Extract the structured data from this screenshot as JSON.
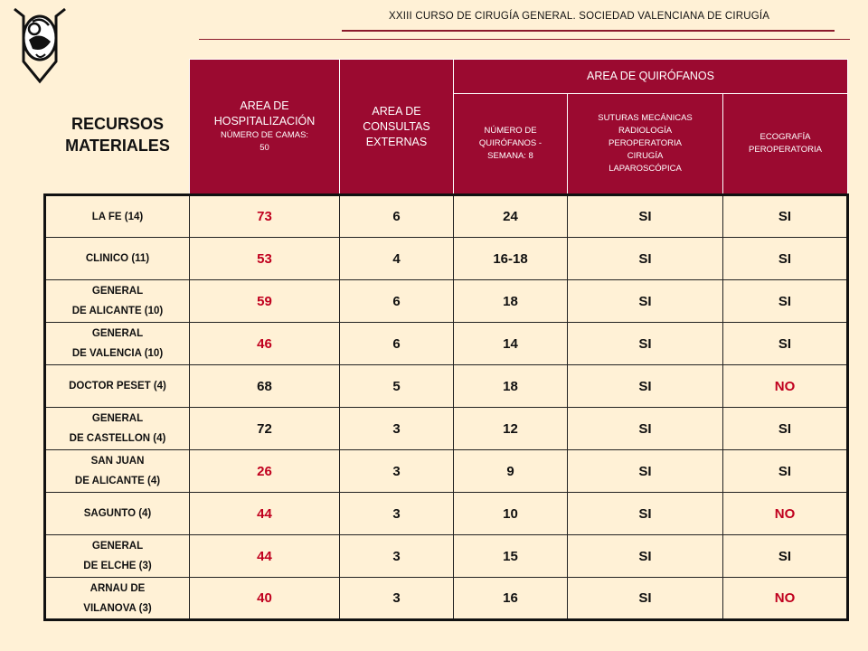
{
  "header": {
    "conference_title": "XXIII CURSO DE CIRUGÍA GENERAL.  SOCIEDAD VALENCIANA DE CIRUGÍA"
  },
  "recursos_label": [
    "RECURSOS",
    "MATERIALES"
  ],
  "columns": {
    "hospitalizacion": {
      "line1": "AREA DE",
      "line2": "HOSPITALIZACIÓN",
      "line3": "NÚMERO DE CAMAS:",
      "line4": "50"
    },
    "consultas": {
      "line1": "AREA DE",
      "line2": "CONSULTAS",
      "line3": "EXTERNAS"
    },
    "quirofanos": {
      "title": "AREA DE QUIRÓFANOS"
    },
    "num_quirofanos": {
      "line1": "NÚMERO DE",
      "line2": "QUIRÓFANOS -",
      "line3": "SEMANA: 8"
    },
    "suturas": {
      "line1": "SUTURAS MECÁNICAS",
      "line2": "RADIOLOGÍA",
      "line3": "PEROPERATORIA",
      "line4": "CIRUGÍA",
      "line5": "LAPAROSCÓPICA"
    },
    "ecografia": {
      "line1": "ECOGRAFÍA",
      "line2": "PEROPERATORIA"
    }
  },
  "rows": [
    {
      "name1": "LA FE (14)",
      "name2": "",
      "camas": "73",
      "camas_red": true,
      "consultas": "6",
      "quirofanos": "24",
      "suturas": "SI",
      "ecografia": "SI",
      "eco_red": false
    },
    {
      "name1": "CLINICO (11)",
      "name2": "",
      "camas": "53",
      "camas_red": true,
      "consultas": "4",
      "quirofanos": "16-18",
      "suturas": "SI",
      "ecografia": "SI",
      "eco_red": false
    },
    {
      "name1": "GENERAL",
      "name2": "DE ALICANTE (10)",
      "camas": "59",
      "camas_red": true,
      "consultas": "6",
      "quirofanos": "18",
      "suturas": "SI",
      "ecografia": "SI",
      "eco_red": false
    },
    {
      "name1": "GENERAL",
      "name2": "DE VALENCIA (10)",
      "camas": "46",
      "camas_red": true,
      "consultas": "6",
      "quirofanos": "14",
      "suturas": "SI",
      "ecografia": "SI",
      "eco_red": false
    },
    {
      "name1": "DOCTOR PESET (4)",
      "name2": "",
      "camas": "68",
      "camas_red": false,
      "consultas": "5",
      "quirofanos": "18",
      "suturas": "SI",
      "ecografia": "NO",
      "eco_red": true
    },
    {
      "name1": "GENERAL",
      "name2": "DE CASTELLON (4)",
      "camas": "72",
      "camas_red": false,
      "consultas": "3",
      "quirofanos": "12",
      "suturas": "SI",
      "ecografia": "SI",
      "eco_red": false
    },
    {
      "name1": "SAN JUAN",
      "name2": "DE ALICANTE (4)",
      "camas": "26",
      "camas_red": true,
      "consultas": "3",
      "quirofanos": "9",
      "suturas": "SI",
      "ecografia": "SI",
      "eco_red": false
    },
    {
      "name1": "SAGUNTO (4)",
      "name2": "",
      "camas": "44",
      "camas_red": true,
      "consultas": "3",
      "quirofanos": "10",
      "suturas": "SI",
      "ecografia": "NO",
      "eco_red": true
    },
    {
      "name1": "GENERAL",
      "name2": "DE ELCHE (3)",
      "camas": "44",
      "camas_red": true,
      "consultas": "3",
      "quirofanos": "15",
      "suturas": "SI",
      "ecografia": "SI",
      "eco_red": false
    },
    {
      "name1": "ARNAU DE",
      "name2": "VILANOVA (3)",
      "camas": "40",
      "camas_red": true,
      "consultas": "3",
      "quirofanos": "16",
      "suturas": "SI",
      "ecografia": "NO",
      "eco_red": true
    }
  ],
  "colors": {
    "header_bg": "#9B0A30",
    "page_bg": "#FFF1D6",
    "accent_red": "#C0001E"
  }
}
